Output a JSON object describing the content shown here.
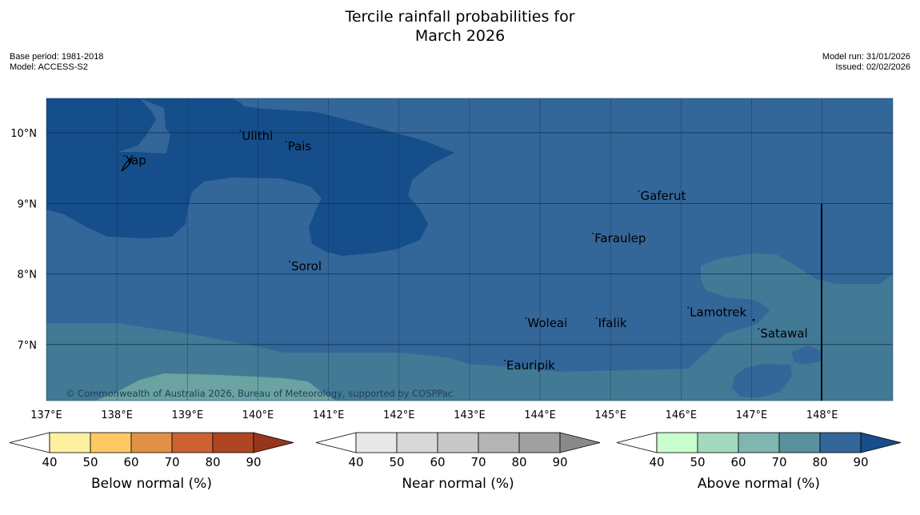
{
  "title": {
    "line1": "Tercile rainfall probabilities for",
    "line2": "March 2026"
  },
  "meta_left": {
    "base_period": "Base period: 1981-2018",
    "model": "Model: ACCESS-S2"
  },
  "meta_right": {
    "model_run": "Model run: 31/01/2026",
    "issued": "Issued: 02/02/2026"
  },
  "map": {
    "lat_labels": [
      "10°N",
      "9°N",
      "8°N",
      "7°N"
    ],
    "lon_labels": [
      "137°E",
      "138°E",
      "139°E",
      "140°E",
      "141°E",
      "142°E",
      "143°E",
      "144°E",
      "145°E",
      "146°E",
      "147°E",
      "148°E"
    ],
    "places": [
      {
        "name": "Yap"
      },
      {
        "name": "Ulithi"
      },
      {
        "name": "Pais"
      },
      {
        "name": "Gaferut"
      },
      {
        "name": "Faraulep"
      },
      {
        "name": "Sorol"
      },
      {
        "name": "Lamotrek"
      },
      {
        "name": "Woleai"
      },
      {
        "name": "Ifalik"
      },
      {
        "name": "Satawal"
      },
      {
        "name": "Eauripik"
      }
    ],
    "copyright": "© Commonwealth of Australia 2026, Bureau of Meteorology, supported by COSPPac",
    "colors": {
      "above_90": "#154e8a",
      "above_80": "#336699",
      "above_70": "#427a96",
      "above_60": "#6aa3a0"
    }
  },
  "legends": [
    {
      "label": "Below normal (%)",
      "ticks": [
        "40",
        "50",
        "60",
        "70",
        "80",
        "90"
      ],
      "colors": [
        "#ffffff",
        "#fff0a0",
        "#fec965",
        "#e09146",
        "#cc6133",
        "#b04523",
        "#98351f"
      ]
    },
    {
      "label": "Near normal (%)",
      "ticks": [
        "40",
        "50",
        "60",
        "70",
        "80",
        "90"
      ],
      "colors": [
        "#ffffff",
        "#e8e8e8",
        "#d8d8d8",
        "#c8c8c8",
        "#b4b4b4",
        "#a0a0a0",
        "#8a8a8a"
      ]
    },
    {
      "label": "Above normal (%)",
      "ticks": [
        "40",
        "50",
        "60",
        "70",
        "80",
        "90"
      ],
      "colors": [
        "#ffffff",
        "#c8ffcc",
        "#a3d9bc",
        "#80b5b0",
        "#5a909e",
        "#336699",
        "#154e8a"
      ]
    }
  ]
}
